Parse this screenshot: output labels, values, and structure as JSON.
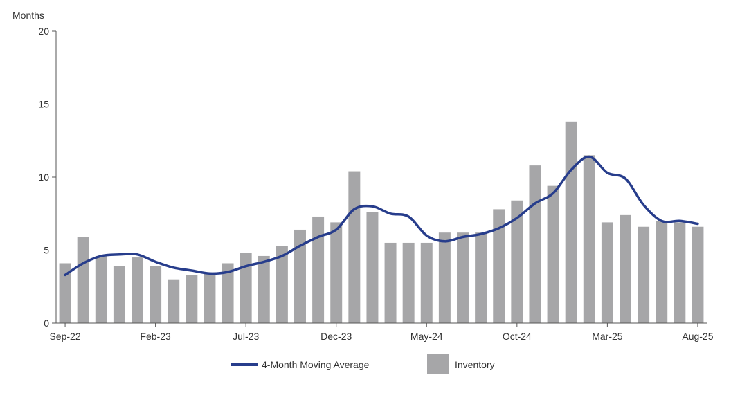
{
  "chart_data": {
    "type": "bar",
    "ylabel": "Months",
    "ylim": [
      0,
      20
    ],
    "yticks": [
      0,
      5,
      10,
      15,
      20
    ],
    "grid": false,
    "legend_position": "bottom",
    "colors": {
      "bar": "#a6a6a8",
      "line": "#273d8c",
      "axis": "#555555"
    },
    "categories": [
      "Sep-22",
      "Oct-22",
      "Nov-22",
      "Dec-22",
      "Jan-23",
      "Feb-23",
      "Mar-23",
      "Apr-23",
      "May-23",
      "Jun-23",
      "Jul-23",
      "Aug-23",
      "Sep-23",
      "Oct-23",
      "Nov-23",
      "Dec-23",
      "Jan-24",
      "Feb-24",
      "Mar-24",
      "Apr-24",
      "May-24",
      "Jun-24",
      "Jul-24",
      "Aug-24",
      "Sep-24",
      "Oct-24",
      "Nov-24",
      "Dec-24",
      "Jan-25",
      "Feb-25",
      "Mar-25",
      "Apr-25",
      "May-25",
      "Jun-25",
      "Jul-25",
      "Aug-25"
    ],
    "x_tick_labels": [
      "Sep-22",
      "Feb-23",
      "Jul-23",
      "Dec-23",
      "May-24",
      "Oct-24",
      "Mar-25",
      "Aug-25"
    ],
    "x_tick_indices": [
      0,
      5,
      10,
      15,
      20,
      25,
      30,
      35
    ],
    "series": [
      {
        "name": "Inventory",
        "type": "bar",
        "values": [
          4.1,
          5.9,
          4.6,
          3.9,
          4.5,
          3.9,
          3.0,
          3.3,
          3.4,
          4.1,
          4.8,
          4.6,
          5.3,
          6.4,
          7.3,
          6.9,
          10.4,
          7.6,
          5.5,
          5.5,
          5.5,
          6.2,
          6.2,
          6.2,
          7.8,
          8.4,
          10.8,
          9.4,
          13.8,
          11.5,
          6.9,
          7.4,
          6.6,
          7.0,
          6.9,
          6.6
        ]
      },
      {
        "name": "4-Month Moving Average",
        "type": "line",
        "values": [
          3.3,
          4.1,
          4.6,
          4.7,
          4.7,
          4.2,
          3.8,
          3.6,
          3.4,
          3.5,
          3.9,
          4.2,
          4.6,
          5.3,
          5.9,
          6.4,
          7.8,
          8.0,
          7.5,
          7.3,
          6.0,
          5.6,
          5.9,
          6.1,
          6.5,
          7.2,
          8.2,
          8.9,
          10.5,
          11.4,
          10.3,
          9.9,
          8.1,
          7.0,
          7.0,
          6.8
        ]
      }
    ]
  }
}
